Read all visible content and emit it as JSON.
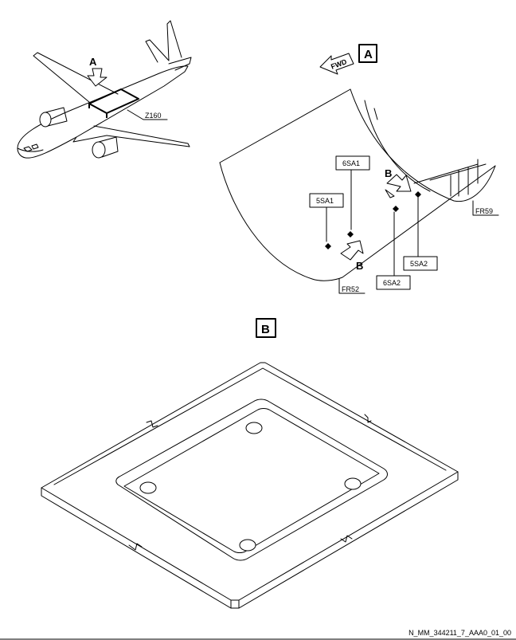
{
  "view_labels": {
    "aircraft_arrow": "A",
    "detail_A": "A",
    "detail_B": "B",
    "arrow_B_upper": "B",
    "arrow_B_lower": "B",
    "fwd": "FWD"
  },
  "zone_label": "Z160",
  "frames": {
    "fr52": "FR52",
    "fr59": "FR59"
  },
  "sensors": {
    "s5SA1": "5SA1",
    "s6SA1": "6SA1",
    "s5SA2": "5SA2",
    "s6SA2": "6SA2"
  },
  "footer_ref": "N_MM_344211_7_AAA0_01_00"
}
